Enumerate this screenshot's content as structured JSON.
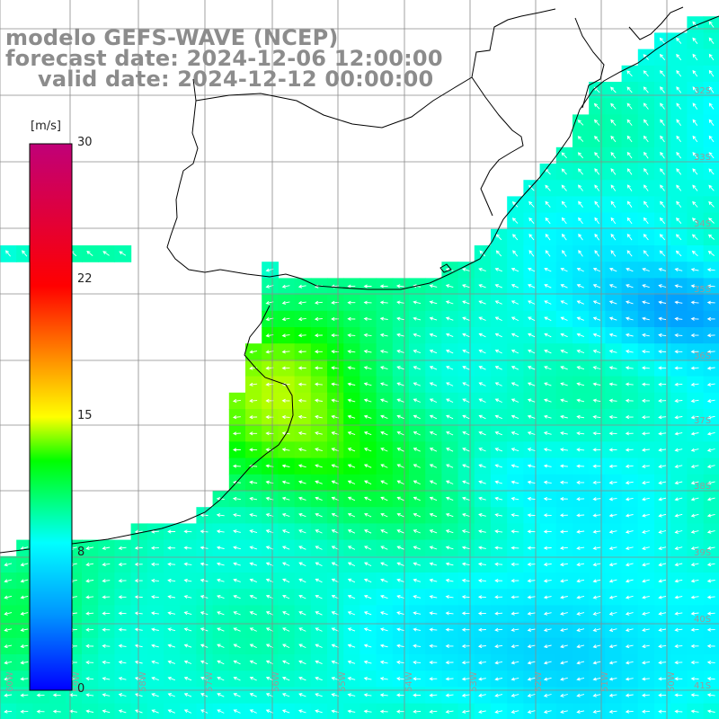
{
  "title": {
    "line1": "modelo GEFS-WAVE (NCEP)",
    "line2": "forecast date: 2024-12-06 12:00:00",
    "line3": "valid date: 2024-12-12 00:00:00"
  },
  "colorbar": {
    "unit": "[m/s]",
    "min": 0,
    "max": 30,
    "ticks": [
      "30",
      "22",
      "15",
      "8",
      "0"
    ],
    "tick_values": [
      30,
      22,
      15,
      8,
      0
    ],
    "colors": [
      "#0000ff",
      "#0096ff",
      "#00ffff",
      "#00ff00",
      "#ffff00",
      "#ff8000",
      "#ff0000",
      "#c00078"
    ]
  },
  "map": {
    "lat_labels": [
      "32S",
      "33S",
      "34S",
      "35S",
      "36S",
      "37S",
      "38S",
      "39S",
      "40S",
      "41S"
    ],
    "lon_labels": [
      "60W",
      "59W",
      "58W",
      "57W",
      "56W",
      "55W",
      "54W",
      "53W",
      "52W",
      "51W",
      "50W"
    ],
    "land_color": "#ffffff",
    "grid_color": "#8a8a8a",
    "coast_color": "#000000",
    "arrow_color": "#ffffff"
  }
}
